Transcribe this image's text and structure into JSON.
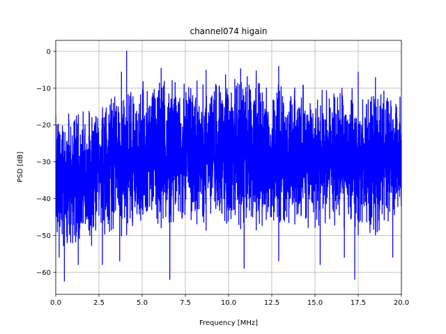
{
  "chart_data": {
    "type": "line",
    "title": "channel074 higain",
    "xlabel": "Frequency [MHz]",
    "ylabel": "PSD [dB]",
    "xlim": [
      0,
      20
    ],
    "ylim": [
      -66,
      3
    ],
    "xticks": [
      0,
      2.5,
      5,
      7.5,
      10,
      12.5,
      15,
      17.5,
      20
    ],
    "xtick_labels": [
      "0.0",
      "2.5",
      "5.0",
      "7.5",
      "10.0",
      "12.5",
      "15.0",
      "17.5",
      "20.0"
    ],
    "yticks": [
      0,
      -10,
      -20,
      -30,
      -40,
      -50,
      -60
    ],
    "ytick_labels": [
      "0",
      "−10",
      "−20",
      "−30",
      "−40",
      "−50",
      "−60"
    ],
    "grid": true,
    "series": [
      {
        "color": "#0000ff",
        "upper_envelope": {
          "x": [
            0,
            0.3,
            0.6,
            1.0,
            1.5,
            2.0,
            2.5,
            3.0,
            3.5,
            4.0,
            4.5,
            5.0,
            5.5,
            6.0,
            6.5,
            7.0,
            7.5,
            8.0,
            9.0,
            10.0,
            11.0,
            12.0,
            13.0,
            14.0,
            15.0,
            16.0,
            17.0,
            18.0,
            19.0,
            20.0
          ],
          "y": [
            -15,
            -17,
            -17,
            -16,
            -15,
            -14,
            -12,
            -10,
            -9.5,
            -9,
            -8.5,
            -8,
            -7.5,
            -7,
            -6.5,
            -6.5,
            -6,
            -6,
            -6.5,
            -6,
            -6,
            -6.5,
            -7,
            -8,
            -9,
            -9,
            -9.5,
            -9,
            -10,
            -10
          ]
        },
        "lower_envelope": {
          "x": [
            0,
            0.5,
            1.0,
            1.5,
            2.0,
            3.0,
            4.0,
            5.0,
            6.0,
            7.0,
            8.0,
            9.0,
            10.0,
            11.0,
            12.0,
            13.0,
            14.0,
            15.0,
            16.0,
            17.0,
            18.0,
            19.0,
            20.0
          ],
          "y": [
            -52,
            -54,
            -54,
            -54,
            -53,
            -51,
            -50,
            -49,
            -48,
            -48,
            -48,
            -49,
            -49,
            -48,
            -49,
            -49,
            -49,
            -50,
            -50,
            -50,
            -50,
            -50,
            -50
          ]
        },
        "peaks": [
          {
            "x": 4.1,
            "y": 0.2
          },
          {
            "x": 3.8,
            "y": -5.5
          },
          {
            "x": 6.1,
            "y": -4.5
          },
          {
            "x": 8.7,
            "y": -5.0
          },
          {
            "x": 10.7,
            "y": -4.6
          },
          {
            "x": 11.6,
            "y": -5.2
          },
          {
            "x": 12.9,
            "y": -4.0
          },
          {
            "x": 17.5,
            "y": -5.5
          },
          {
            "x": 18.5,
            "y": -7.0
          }
        ],
        "troughs": [
          {
            "x": 0.2,
            "y": -56
          },
          {
            "x": 0.5,
            "y": -62.5
          },
          {
            "x": 1.3,
            "y": -58
          },
          {
            "x": 2.7,
            "y": -58
          },
          {
            "x": 3.7,
            "y": -57
          },
          {
            "x": 6.6,
            "y": -62
          },
          {
            "x": 10.9,
            "y": -59
          },
          {
            "x": 12.9,
            "y": -57
          },
          {
            "x": 15.3,
            "y": -58
          },
          {
            "x": 16.7,
            "y": -56
          },
          {
            "x": 17.3,
            "y": -62
          },
          {
            "x": 19.5,
            "y": -56
          }
        ]
      }
    ]
  }
}
